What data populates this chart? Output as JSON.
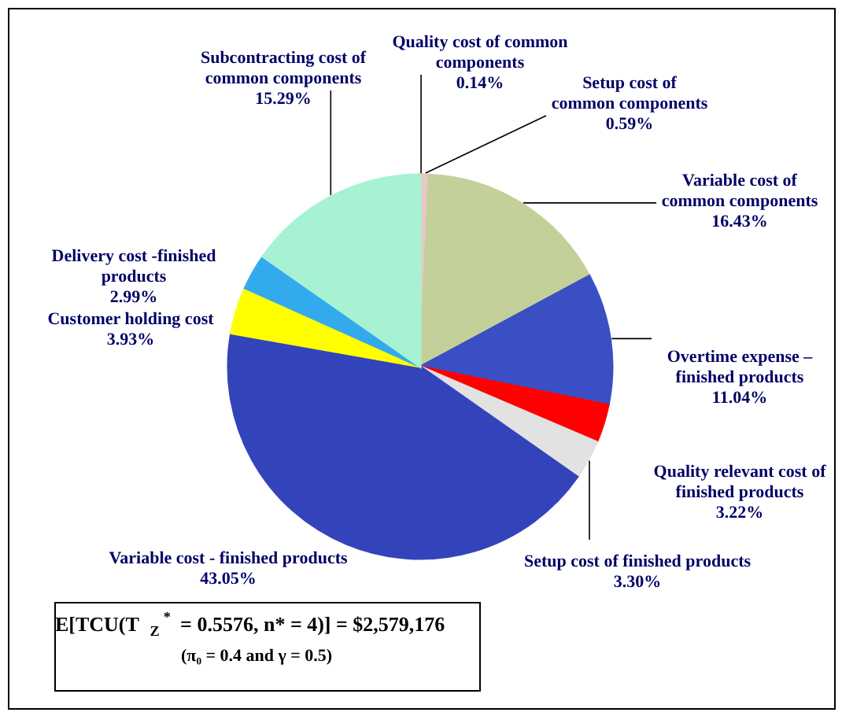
{
  "chart_data": {
    "type": "pie",
    "categories": [
      "Quality cost of common components",
      "Setup cost of common components",
      "Variable cost of common components",
      "Overtime expense – finished products",
      "Quality relevant cost of finished products",
      "Setup cost of finished products",
      "Variable cost - finished products",
      "Customer holding cost",
      "Delivery cost -finished products",
      "Subcontracting cost of common components"
    ],
    "values": [
      0.14,
      0.59,
      16.43,
      11.04,
      3.22,
      3.3,
      43.05,
      3.93,
      2.99,
      15.29
    ],
    "colors": [
      "#cc0000",
      "#e8c8c8",
      "#c4d09a",
      "#3b4fc4",
      "#ff0000",
      "#e2e2e2",
      "#3344bb",
      "#ffff00",
      "#33aaee",
      "#a6f2d2"
    ],
    "value_labels": [
      "0.14%",
      "0.59%",
      "16.43%",
      "11.04%",
      "3.22%",
      "3.30%",
      "43.05%",
      "3.93%",
      "2.99%",
      "15.29%"
    ],
    "annotations": [
      "E[TCU(T$_{Z}$$^{*}$ = 0.5576, n* = 4)] = $2,579,176",
      "(π₀ = 0.4 and γ = 0.5)"
    ]
  }
}
